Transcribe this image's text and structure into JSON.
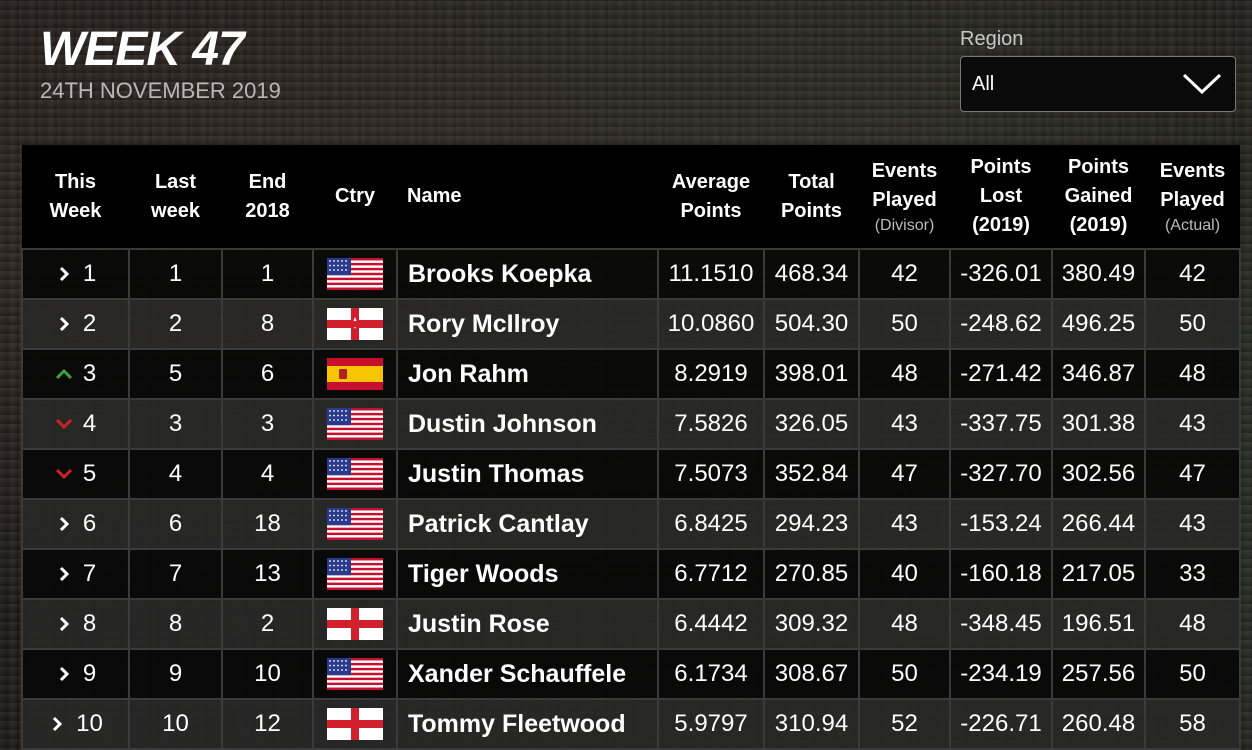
{
  "header": {
    "title": "WEEK 47",
    "date": "24TH NOVEMBER 2019"
  },
  "region": {
    "label": "Region",
    "value": "All"
  },
  "columns": {
    "this_week": [
      "This",
      "Week"
    ],
    "last_week": [
      "Last",
      "week"
    ],
    "end_2018": [
      "End",
      "2018"
    ],
    "ctry": "Ctry",
    "name": "Name",
    "avg_points": [
      "Average",
      "Points"
    ],
    "total_points": [
      "Total",
      "Points"
    ],
    "events_divisor": [
      "Events",
      "Played",
      "(Divisor)"
    ],
    "points_lost": [
      "Points",
      "Lost",
      "(2019)"
    ],
    "points_gained": [
      "Points",
      "Gained",
      "(2019)"
    ],
    "events_actual": [
      "Events",
      "Played",
      "(Actual)"
    ]
  },
  "colors": {
    "up": "#3aa33a",
    "down": "#cc2222",
    "same": "#ffffff"
  },
  "rows": [
    {
      "rank": "1",
      "move": "same",
      "last": "1",
      "end2018": "1",
      "flag": "usa",
      "name": "Brooks Koepka",
      "avg": "11.1510",
      "total": "468.34",
      "ev_div": "42",
      "lost": "-326.01",
      "gained": "380.49",
      "ev_act": "42"
    },
    {
      "rank": "2",
      "move": "same",
      "last": "2",
      "end2018": "8",
      "flag": "nir",
      "name": "Rory McIlroy",
      "avg": "10.0860",
      "total": "504.30",
      "ev_div": "50",
      "lost": "-248.62",
      "gained": "496.25",
      "ev_act": "50"
    },
    {
      "rank": "3",
      "move": "up",
      "last": "5",
      "end2018": "6",
      "flag": "esp",
      "name": "Jon Rahm",
      "avg": "8.2919",
      "total": "398.01",
      "ev_div": "48",
      "lost": "-271.42",
      "gained": "346.87",
      "ev_act": "48"
    },
    {
      "rank": "4",
      "move": "down",
      "last": "3",
      "end2018": "3",
      "flag": "usa",
      "name": "Dustin Johnson",
      "avg": "7.5826",
      "total": "326.05",
      "ev_div": "43",
      "lost": "-337.75",
      "gained": "301.38",
      "ev_act": "43"
    },
    {
      "rank": "5",
      "move": "down",
      "last": "4",
      "end2018": "4",
      "flag": "usa",
      "name": "Justin Thomas",
      "avg": "7.5073",
      "total": "352.84",
      "ev_div": "47",
      "lost": "-327.70",
      "gained": "302.56",
      "ev_act": "47"
    },
    {
      "rank": "6",
      "move": "same",
      "last": "6",
      "end2018": "18",
      "flag": "usa",
      "name": "Patrick Cantlay",
      "avg": "6.8425",
      "total": "294.23",
      "ev_div": "43",
      "lost": "-153.24",
      "gained": "266.44",
      "ev_act": "43"
    },
    {
      "rank": "7",
      "move": "same",
      "last": "7",
      "end2018": "13",
      "flag": "usa",
      "name": "Tiger Woods",
      "avg": "6.7712",
      "total": "270.85",
      "ev_div": "40",
      "lost": "-160.18",
      "gained": "217.05",
      "ev_act": "33"
    },
    {
      "rank": "8",
      "move": "same",
      "last": "8",
      "end2018": "2",
      "flag": "eng",
      "name": "Justin Rose",
      "avg": "6.4442",
      "total": "309.32",
      "ev_div": "48",
      "lost": "-348.45",
      "gained": "196.51",
      "ev_act": "48"
    },
    {
      "rank": "9",
      "move": "same",
      "last": "9",
      "end2018": "10",
      "flag": "usa",
      "name": "Xander Schauffele",
      "avg": "6.1734",
      "total": "308.67",
      "ev_div": "50",
      "lost": "-234.19",
      "gained": "257.56",
      "ev_act": "50"
    },
    {
      "rank": "10",
      "move": "same",
      "last": "10",
      "end2018": "12",
      "flag": "eng",
      "name": "Tommy Fleetwood",
      "avg": "5.9797",
      "total": "310.94",
      "ev_div": "52",
      "lost": "-226.71",
      "gained": "260.48",
      "ev_act": "58"
    }
  ]
}
